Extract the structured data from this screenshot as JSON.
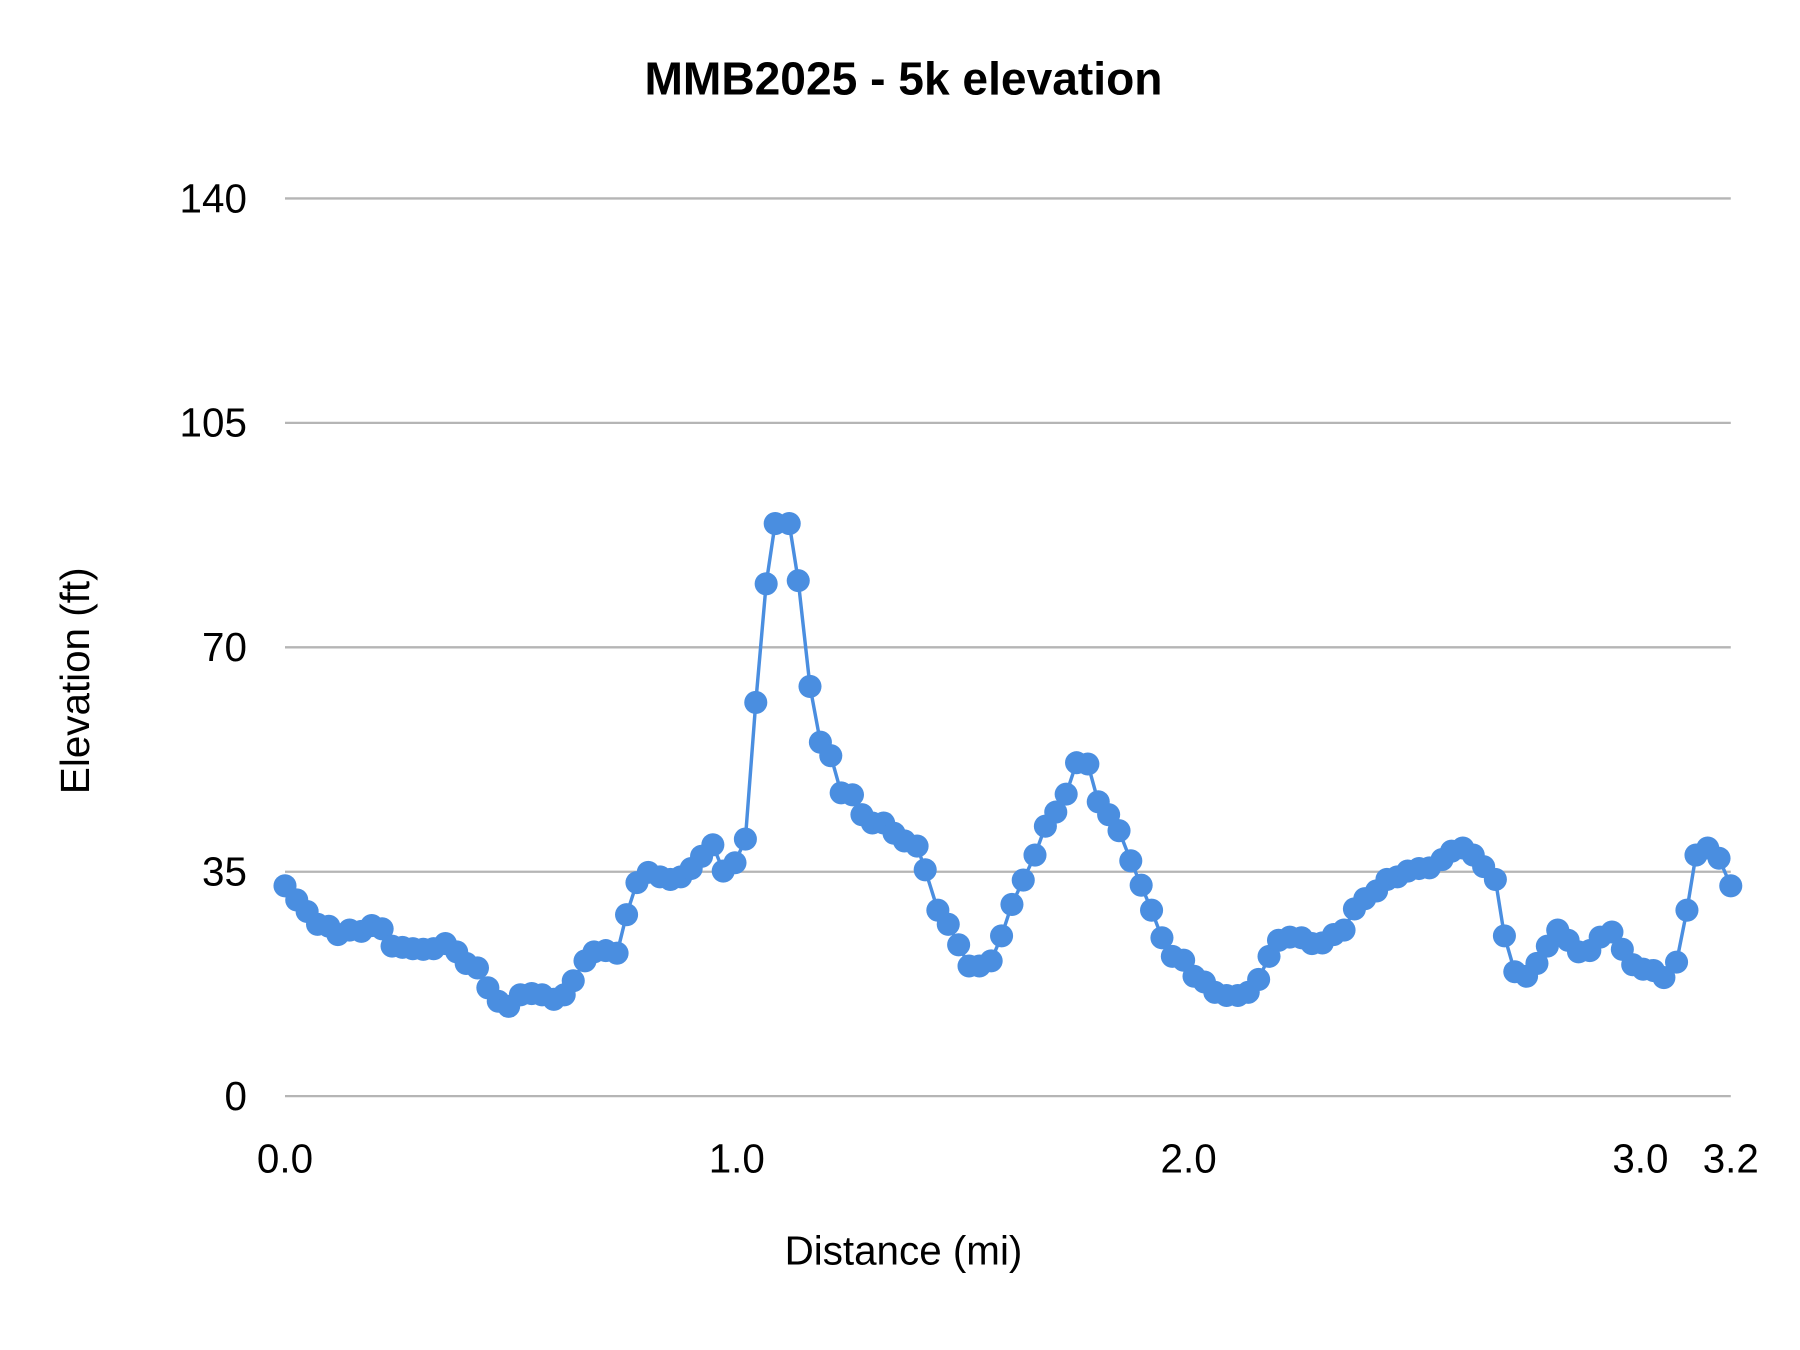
{
  "chart_data": {
    "type": "line",
    "title": "MMB2025 - 5k elevation",
    "xlabel": "Distance (mi)",
    "ylabel": "Elevation (ft)",
    "xlim": [
      0,
      3.2
    ],
    "ylim": [
      0,
      140
    ],
    "x_ticks": [
      "0.0",
      "1.0",
      "2.0",
      "3.0",
      "3.2"
    ],
    "x_tick_values": [
      0,
      1.0,
      2.0,
      3.0,
      3.2
    ],
    "y_ticks": [
      "0",
      "35",
      "70",
      "105",
      "140"
    ],
    "y_tick_values": [
      0,
      35,
      70,
      105,
      140
    ],
    "grid": "horizontal",
    "markers": true,
    "color": "#4a8ee0",
    "grid_color": "#b5b5b5",
    "series": [
      {
        "x": [
          0.0,
          0.026,
          0.049,
          0.072,
          0.097,
          0.117,
          0.143,
          0.169,
          0.192,
          0.215,
          0.237,
          0.26,
          0.283,
          0.306,
          0.329,
          0.355,
          0.38,
          0.401,
          0.426,
          0.449,
          0.472,
          0.495,
          0.521,
          0.546,
          0.569,
          0.595,
          0.618,
          0.638,
          0.664,
          0.684,
          0.71,
          0.735,
          0.756,
          0.779,
          0.804,
          0.83,
          0.853,
          0.876,
          0.899,
          0.922,
          0.947,
          0.97,
          0.996,
          1.019,
          1.042,
          1.065,
          1.085,
          1.116,
          1.136,
          1.162,
          1.185,
          1.208,
          1.231,
          1.256,
          1.277,
          1.3,
          1.325,
          1.348,
          1.371,
          1.399,
          1.417,
          1.445,
          1.468,
          1.491,
          1.514,
          1.537,
          1.563,
          1.586,
          1.609,
          1.634,
          1.66,
          1.683,
          1.706,
          1.729,
          1.752,
          1.777,
          1.8,
          1.823,
          1.846,
          1.872,
          1.895,
          1.918,
          1.941,
          1.964,
          1.989,
          2.012,
          2.035,
          2.058,
          2.084,
          2.109,
          2.132,
          2.155,
          2.178,
          2.199,
          2.224,
          2.25,
          2.273,
          2.296,
          2.321,
          2.344,
          2.367,
          2.39,
          2.416,
          2.439,
          2.462,
          2.485,
          2.51,
          2.533,
          2.561,
          2.582,
          2.607,
          2.63,
          2.653,
          2.679,
          2.699,
          2.722,
          2.748,
          2.771,
          2.794,
          2.817,
          2.84,
          2.863,
          2.888,
          2.911,
          2.937,
          2.96,
          2.983,
          3.006,
          3.029,
          3.052,
          3.08,
          3.103,
          3.123,
          3.149,
          3.174,
          3.2
        ],
        "y": [
          32.8,
          30.6,
          28.8,
          26.8,
          26.5,
          25.2,
          25.9,
          25.7,
          26.6,
          26.1,
          23.4,
          23.2,
          23.0,
          22.9,
          23.0,
          23.8,
          22.5,
          20.7,
          20.0,
          16.9,
          14.8,
          14.0,
          15.8,
          16.0,
          15.8,
          15.1,
          15.8,
          18.0,
          21.1,
          22.5,
          22.7,
          22.3,
          28.3,
          33.3,
          34.9,
          34.2,
          33.8,
          34.2,
          35.5,
          37.4,
          39.2,
          35.1,
          36.4,
          40.1,
          61.4,
          79.9,
          89.3,
          89.3,
          80.4,
          63.9,
          55.2,
          53.1,
          47.3,
          47.0,
          43.9,
          42.6,
          42.6,
          41.0,
          39.8,
          39.0,
          35.3,
          29.0,
          26.8,
          23.6,
          20.3,
          20.3,
          21.1,
          25.0,
          29.9,
          33.7,
          37.6,
          42.1,
          44.3,
          47.1,
          52.0,
          51.8,
          45.9,
          43.9,
          41.4,
          36.7,
          32.9,
          29.0,
          24.7,
          21.8,
          21.2,
          18.7,
          17.8,
          16.2,
          15.7,
          15.7,
          16.2,
          18.2,
          21.8,
          24.3,
          24.8,
          24.7,
          23.8,
          23.9,
          25.2,
          25.9,
          29.2,
          30.8,
          32.0,
          33.8,
          34.2,
          35.1,
          35.5,
          35.6,
          36.9,
          38.2,
          38.7,
          37.6,
          35.8,
          33.8,
          25.0,
          19.4,
          18.7,
          20.7,
          23.4,
          25.9,
          24.3,
          22.5,
          22.7,
          24.8,
          25.6,
          22.9,
          20.5,
          19.8,
          19.6,
          18.5,
          20.9,
          29.0,
          37.6,
          38.7,
          37.1,
          32.8
        ]
      }
    ]
  }
}
